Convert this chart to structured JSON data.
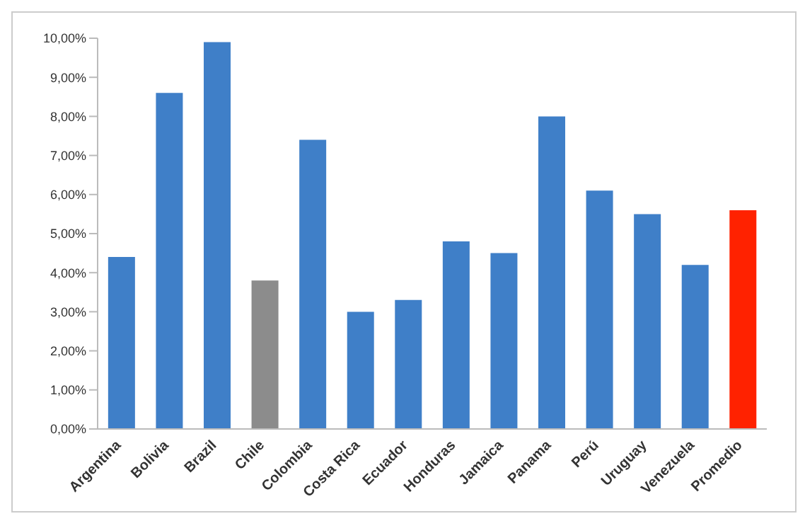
{
  "chart_data": {
    "type": "bar",
    "categories": [
      "Argentina",
      "Bolivia",
      "Brazil",
      "Chile",
      "Colombia",
      "Costa Rica",
      "Ecuador",
      "Honduras",
      "Jamaica",
      "Panama",
      "Perú",
      "Uruguay",
      "Venezuela",
      "Promedio"
    ],
    "values": [
      4.4,
      8.6,
      9.9,
      3.8,
      7.4,
      3.0,
      3.3,
      4.8,
      4.5,
      8.0,
      6.1,
      5.5,
      4.2,
      5.6
    ],
    "colors": [
      "#3f7fc8",
      "#3f7fc8",
      "#3f7fc8",
      "#8c8c8c",
      "#3f7fc8",
      "#3f7fc8",
      "#3f7fc8",
      "#3f7fc8",
      "#3f7fc8",
      "#3f7fc8",
      "#3f7fc8",
      "#3f7fc8",
      "#3f7fc8",
      "#ff2200"
    ],
    "ylim": [
      0,
      10
    ],
    "yticks": [
      {
        "value": 0,
        "label": "0,00%"
      },
      {
        "value": 1,
        "label": "1,00%"
      },
      {
        "value": 2,
        "label": "2,00%"
      },
      {
        "value": 3,
        "label": "3,00%"
      },
      {
        "value": 4,
        "label": "4,00%"
      },
      {
        "value": 5,
        "label": "5,00%"
      },
      {
        "value": 6,
        "label": "6,00%"
      },
      {
        "value": 7,
        "label": "7,00%"
      },
      {
        "value": 8,
        "label": "8,00%"
      },
      {
        "value": 9,
        "label": "9,00%"
      },
      {
        "value": 10,
        "label": "10,00%"
      }
    ],
    "grid": false
  }
}
